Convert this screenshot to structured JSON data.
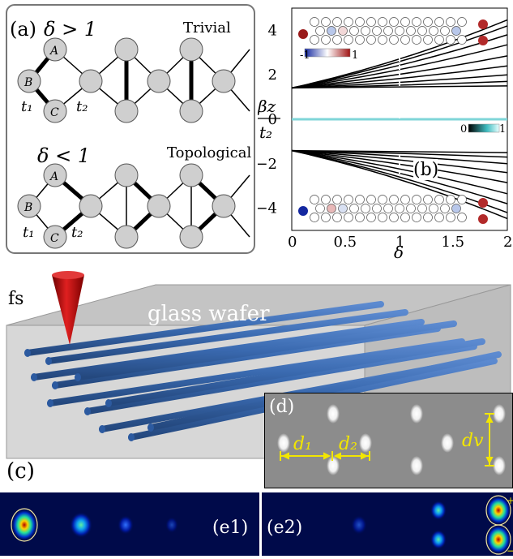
{
  "panel_a": {
    "label": "(a)",
    "top": {
      "condition": "δ > 1",
      "title": "Trivial",
      "site_a": "A",
      "site_b": "B",
      "site_c": "C",
      "t1": "t₁",
      "t2": "t₂"
    },
    "bottom": {
      "condition": "δ < 1",
      "title": "Topological",
      "site_a": "A",
      "site_b": "B",
      "site_c": "C",
      "t1": "t₁",
      "t2": "t₂"
    }
  },
  "panel_b": {
    "label": "(b)",
    "ylabel_num": "βz",
    "ylabel_den": "t₂",
    "xlabel": "δ",
    "colorbar_left": {
      "min": "-1",
      "max": "1"
    },
    "colorbar_right": {
      "min": "0",
      "max": "1"
    }
  },
  "chart_data": {
    "type": "line",
    "xlabel": "δ",
    "ylabel": "βz / t2",
    "xlim": [
      0,
      2
    ],
    "ylim": [
      -5,
      5
    ],
    "x_ticks": [
      "0",
      "0.5",
      "1",
      "1.5",
      "2"
    ],
    "y_ticks": [
      "4",
      "2",
      "0",
      "−2",
      "−4"
    ],
    "series": [
      {
        "values": [
          [
            0,
            1.41
          ],
          [
            2,
            4.47
          ]
        ]
      },
      {
        "values": [
          [
            0,
            1.41
          ],
          [
            2,
            4.2
          ]
        ]
      },
      {
        "values": [
          [
            0,
            1.41
          ],
          [
            2,
            3.8
          ]
        ]
      },
      {
        "values": [
          [
            0,
            1.41
          ],
          [
            2,
            3.35
          ]
        ]
      },
      {
        "values": [
          [
            0,
            1.41
          ],
          [
            2,
            2.85
          ]
        ]
      },
      {
        "values": [
          [
            0,
            1.41
          ],
          [
            2,
            2.4
          ]
        ]
      },
      {
        "values": [
          [
            0,
            1.41
          ],
          [
            2,
            2.0
          ]
        ]
      },
      {
        "values": [
          [
            0,
            1.41
          ],
          [
            2,
            1.7
          ]
        ]
      },
      {
        "values": [
          [
            0,
            1.41
          ],
          [
            2,
            1.5
          ]
        ]
      },
      {
        "values": [
          [
            0,
            0.0
          ],
          [
            2,
            0.0
          ]
        ]
      },
      {
        "values": [
          [
            0,
            -1.41
          ],
          [
            2,
            -1.5
          ]
        ]
      },
      {
        "values": [
          [
            0,
            -1.41
          ],
          [
            2,
            -1.7
          ]
        ]
      },
      {
        "values": [
          [
            0,
            -1.41
          ],
          [
            2,
            -2.0
          ]
        ]
      },
      {
        "values": [
          [
            0,
            -1.41
          ],
          [
            2,
            -2.4
          ]
        ]
      },
      {
        "values": [
          [
            0,
            -1.41
          ],
          [
            2,
            -2.85
          ]
        ]
      },
      {
        "values": [
          [
            0,
            -1.41
          ],
          [
            2,
            -3.35
          ]
        ]
      },
      {
        "values": [
          [
            0,
            -1.41
          ],
          [
            2,
            -3.8
          ]
        ]
      },
      {
        "values": [
          [
            0,
            -1.41
          ],
          [
            2,
            -4.2
          ]
        ]
      },
      {
        "values": [
          [
            0,
            -1.41
          ],
          [
            2,
            -4.47
          ]
        ]
      }
    ],
    "marker_line_x": 1
  },
  "panel_c": {
    "label": "(c)",
    "fs_label": "fs",
    "wafer_label": "glass wafer"
  },
  "panel_d": {
    "label": "(d)",
    "d1": "d₁",
    "d2": "d₂",
    "dv": "dv"
  },
  "panel_e": {
    "e1_label": "(e1)",
    "e2_label": "(e2)",
    "plus": "+",
    "minus": "−"
  },
  "colors": {
    "band_line": "#000000",
    "edge_mode": "#7fd6d8",
    "waveguide": "#3d6fb5",
    "cone": "#d01818",
    "annotation_yellow": "#f2e600",
    "mode_bg": "#000a4a"
  }
}
